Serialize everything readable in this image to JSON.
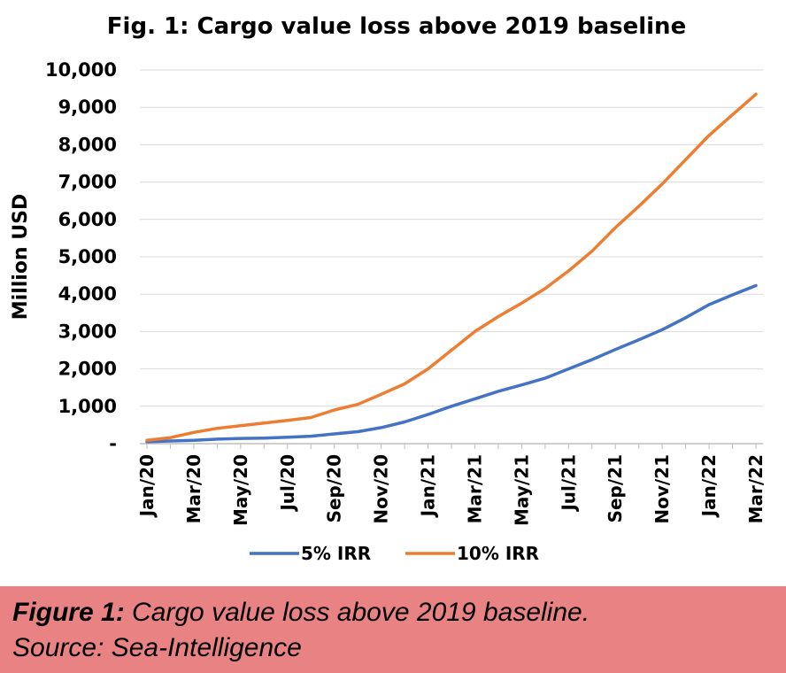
{
  "chart_data": {
    "type": "line",
    "title": "Fig. 1: Cargo value loss above 2019 baseline",
    "ylabel": "Million USD",
    "ylim": [
      0,
      10000
    ],
    "y_ticks": [
      {
        "value": 0,
        "label": "-"
      },
      {
        "value": 1000,
        "label": "1,000"
      },
      {
        "value": 2000,
        "label": "2,000"
      },
      {
        "value": 3000,
        "label": "3,000"
      },
      {
        "value": 4000,
        "label": "4,000"
      },
      {
        "value": 5000,
        "label": "5,000"
      },
      {
        "value": 6000,
        "label": "6,000"
      },
      {
        "value": 7000,
        "label": "7,000"
      },
      {
        "value": 8000,
        "label": "8,000"
      },
      {
        "value": 9000,
        "label": "9,000"
      },
      {
        "value": 10000,
        "label": "10,000"
      }
    ],
    "x": [
      "Jan/20",
      "Feb/20",
      "Mar/20",
      "Apr/20",
      "May/20",
      "Jun/20",
      "Jul/20",
      "Aug/20",
      "Sep/20",
      "Oct/20",
      "Nov/20",
      "Dec/20",
      "Jan/21",
      "Feb/21",
      "Mar/21",
      "Apr/21",
      "May/21",
      "Jun/21",
      "Jul/21",
      "Aug/21",
      "Sep/21",
      "Oct/21",
      "Nov/21",
      "Dec/21",
      "Jan/22",
      "Feb/22",
      "Mar/22"
    ],
    "x_tick_labels": [
      "Jan/20",
      "Mar/20",
      "May/20",
      "Jul/20",
      "Sep/20",
      "Nov/20",
      "Jan/21",
      "Mar/21",
      "May/21",
      "Jul/21",
      "Sep/21",
      "Nov/21",
      "Jan/22",
      "Mar/22"
    ],
    "grid": true,
    "legend_position": "bottom",
    "series": [
      {
        "name": "5% IRR",
        "color": "#4472c4",
        "values": [
          50,
          70,
          90,
          120,
          140,
          150,
          170,
          200,
          260,
          320,
          430,
          580,
          780,
          1000,
          1200,
          1400,
          1570,
          1750,
          2000,
          2250,
          2520,
          2780,
          3050,
          3370,
          3720,
          3980,
          4230
        ]
      },
      {
        "name": "10% IRR",
        "color": "#ed7d31",
        "values": [
          90,
          160,
          300,
          410,
          480,
          550,
          620,
          700,
          900,
          1050,
          1320,
          1600,
          2000,
          2500,
          3000,
          3400,
          3760,
          4150,
          4620,
          5150,
          5780,
          6350,
          6950,
          7600,
          8250,
          8800,
          9350
        ]
      }
    ]
  },
  "caption": {
    "lead": "Figure 1:",
    "text": " Cargo value loss above 2019 baseline.",
    "source": "Source: Sea-Intelligence"
  }
}
